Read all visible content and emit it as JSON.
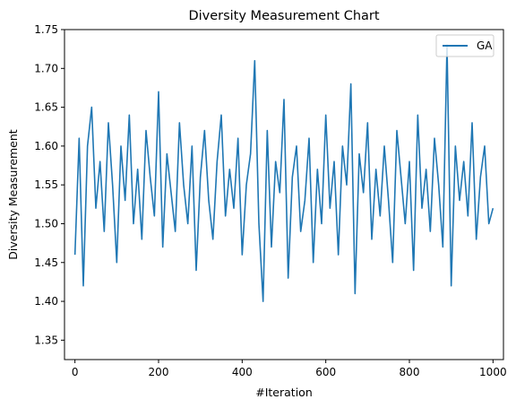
{
  "chart_data": {
    "type": "line",
    "title": "Diversity Measurement Chart",
    "xlabel": "#Iteration",
    "ylabel": "Diversity Measurement",
    "xlim": [
      -25,
      1025
    ],
    "ylim": [
      1.325,
      1.75
    ],
    "xticks": [
      0,
      200,
      400,
      600,
      800,
      1000
    ],
    "xtick_labels": [
      "0",
      "200",
      "400",
      "600",
      "800",
      "1000"
    ],
    "yticks": [
      1.35,
      1.4,
      1.45,
      1.5,
      1.55,
      1.6,
      1.65,
      1.7,
      1.75
    ],
    "ytick_labels": [
      "1.35",
      "1.40",
      "1.45",
      "1.50",
      "1.55",
      "1.60",
      "1.65",
      "1.70",
      "1.75"
    ],
    "grid": false,
    "legend_position": "top-right",
    "series": [
      {
        "name": "GA",
        "color": "#1f77b4",
        "x_start": 0,
        "x_step": 10,
        "values": [
          1.46,
          1.61,
          1.42,
          1.6,
          1.65,
          1.52,
          1.58,
          1.49,
          1.63,
          1.55,
          1.45,
          1.6,
          1.53,
          1.64,
          1.5,
          1.57,
          1.48,
          1.62,
          1.56,
          1.51,
          1.67,
          1.47,
          1.59,
          1.54,
          1.49,
          1.63,
          1.55,
          1.5,
          1.6,
          1.44,
          1.56,
          1.62,
          1.53,
          1.48,
          1.58,
          1.64,
          1.51,
          1.57,
          1.52,
          1.61,
          1.46,
          1.55,
          1.59,
          1.71,
          1.5,
          1.4,
          1.62,
          1.47,
          1.58,
          1.54,
          1.66,
          1.43,
          1.56,
          1.6,
          1.49,
          1.53,
          1.61,
          1.45,
          1.57,
          1.5,
          1.64,
          1.52,
          1.58,
          1.46,
          1.6,
          1.55,
          1.68,
          1.41,
          1.59,
          1.54,
          1.63,
          1.48,
          1.57,
          1.51,
          1.6,
          1.53,
          1.45,
          1.62,
          1.56,
          1.5,
          1.58,
          1.44,
          1.64,
          1.52,
          1.57,
          1.49,
          1.61,
          1.55,
          1.47,
          1.73,
          1.42,
          1.6,
          1.53,
          1.58,
          1.51,
          1.63,
          1.48,
          1.56,
          1.6,
          1.5,
          1.52
        ]
      }
    ]
  }
}
